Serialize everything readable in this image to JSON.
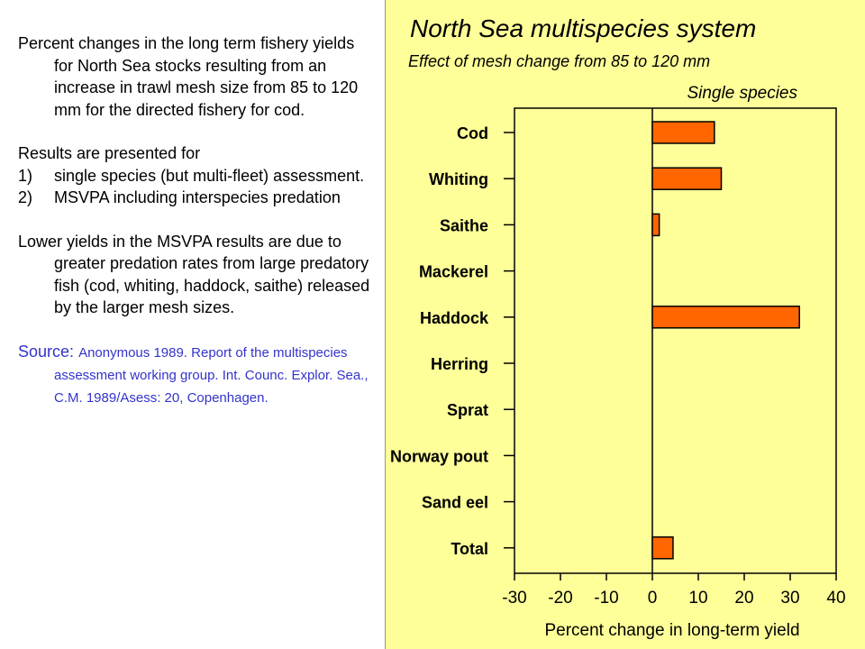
{
  "text": {
    "para1": "Percent changes in the long term fishery yields for North Sea stocks resulting from an increase in trawl mesh size from 85 to 120 mm for the directed fishery for cod.",
    "para2": "Results are presented  for",
    "list": [
      {
        "num": "1)",
        "text": "single species (but multi-fleet) assessment."
      },
      {
        "num": "2)",
        "text": "MSVPA including interspecies predation"
      }
    ],
    "para3": "Lower yields in the MSVPA results are due to greater predation rates from large predatory fish (cod, whiting, haddock, saithe) released by the larger mesh sizes.",
    "source_label": "Source:",
    "source_text": "Anonymous 1989. Report of the multispecies assessment working group. Int. Counc. Explor. Sea., C.M. 1989/Asess: 20, Copenhagen."
  },
  "colors": {
    "panel_bg": "#ffff99",
    "bar_fill": "#ff6600",
    "source_text": "#3333cc"
  },
  "chart_data": {
    "type": "bar",
    "orientation": "horizontal",
    "title": "North Sea multispecies system",
    "subtitle": "Effect of mesh change from 85 to 120 mm",
    "xlabel": "Percent change in long-term yield",
    "ylabel": "",
    "categories": [
      "Cod",
      "Whiting",
      "Saithe",
      "Mackerel",
      "Haddock",
      "Herring",
      "Sprat",
      "Norway pout",
      "Sand eel",
      "Total"
    ],
    "series": [
      {
        "name": "Single species",
        "values": [
          13.5,
          15,
          1.5,
          0,
          32,
          0,
          0,
          0,
          0,
          4.5
        ]
      }
    ],
    "xlim": [
      -30,
      40
    ],
    "xticks": [
      -30,
      -20,
      -10,
      0,
      10,
      20,
      30,
      40
    ],
    "grid": false,
    "legend": "top-right"
  }
}
